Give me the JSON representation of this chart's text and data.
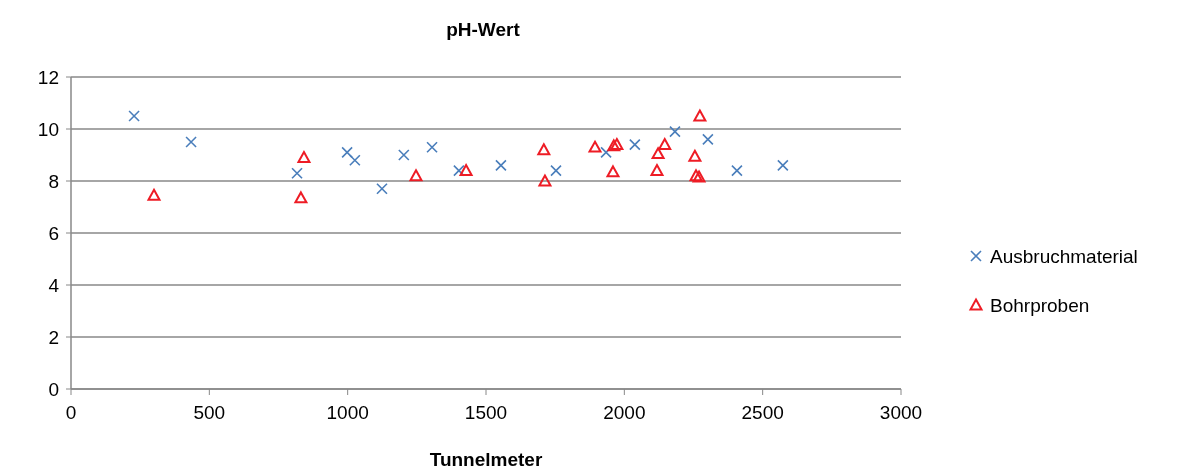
{
  "chart_data": {
    "type": "scatter",
    "title": "pH-Wert",
    "xlabel": "Tunnelmeter",
    "xlim": [
      0,
      3000
    ],
    "xticks": [
      0,
      500,
      1000,
      1500,
      2000,
      2500,
      3000
    ],
    "ylim": [
      0,
      12
    ],
    "yticks": [
      0,
      2,
      4,
      6,
      8,
      10,
      12
    ],
    "grid": "y",
    "legend": "right",
    "series": [
      {
        "name": "Ausbruchmaterial",
        "color": "#4a7ebb",
        "marker": "cross",
        "x": [
          228,
          434,
          817,
          998,
          1026,
          1124,
          1203,
          1305,
          1402,
          1554,
          1753,
          1934,
          2038,
          2183,
          2302,
          2407,
          2573
        ],
        "values": [
          10.5,
          9.5,
          8.3,
          9.1,
          8.8,
          7.7,
          9.0,
          9.3,
          8.4,
          8.6,
          8.4,
          9.1,
          9.4,
          9.9,
          9.6,
          8.4,
          8.6
        ]
      },
      {
        "name": "Bohrproben",
        "color": "#ee1c25",
        "marker": "triangle",
        "x": [
          300,
          831,
          842,
          1247,
          1428,
          1709,
          1713,
          1894,
          1962,
          1973,
          1959,
          2118,
          2122,
          2146,
          2255,
          2259,
          2270,
          2273
        ],
        "values": [
          7.45,
          7.35,
          8.9,
          8.2,
          8.4,
          9.2,
          8.0,
          9.3,
          9.35,
          9.4,
          8.35,
          8.4,
          9.05,
          9.4,
          8.95,
          8.2,
          8.15,
          10.5
        ]
      }
    ]
  }
}
